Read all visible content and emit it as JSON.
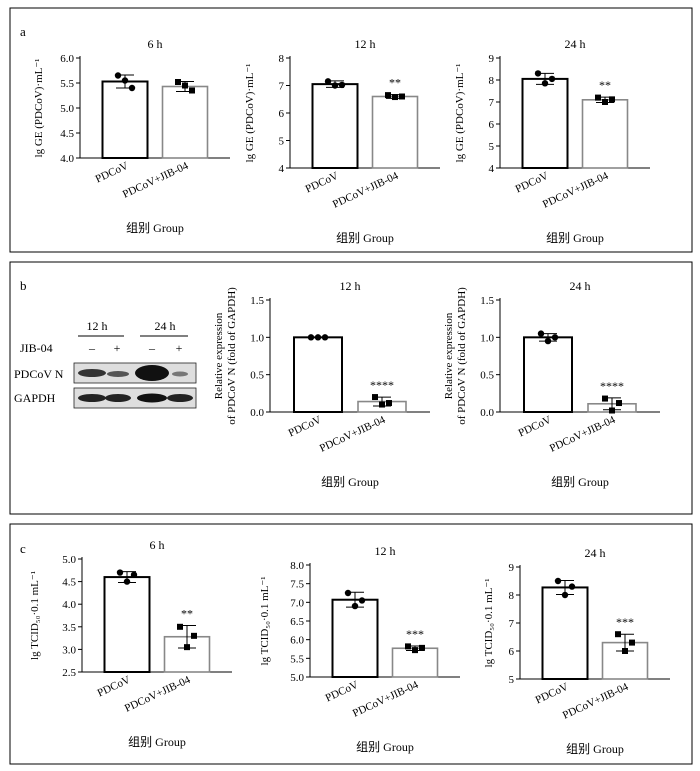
{
  "panels": [
    {
      "letter": "a"
    },
    {
      "letter": "b"
    },
    {
      "letter": "c"
    }
  ],
  "blot": {
    "time_labels": [
      "12 h",
      "24 h"
    ],
    "treatment_label": "JIB-04",
    "lane_signs": [
      "–",
      "+",
      "–",
      "+"
    ],
    "rows": [
      "PDCoV N",
      "GAPDH"
    ]
  },
  "chart_data": [
    {
      "id": "a1",
      "type": "bar",
      "title": "6 h",
      "ylabel": "lg GE (PDCoV)·mL⁻¹",
      "xlabel": "组别 Group",
      "categories": [
        "PDCoV",
        "PDCoV+JIB-04"
      ],
      "values": [
        5.53,
        5.43
      ],
      "err": [
        0.13,
        0.1
      ],
      "points": [
        [
          5.65,
          5.55,
          5.4
        ],
        [
          5.52,
          5.45,
          5.35
        ]
      ],
      "ylim": [
        4.0,
        6.0
      ],
      "yticks": [
        "4.0",
        "4.5",
        "5.0",
        "5.5",
        "6.0"
      ],
      "significance": [
        "",
        ""
      ]
    },
    {
      "id": "a2",
      "type": "bar",
      "title": "12 h",
      "ylabel": "lg GE (PDCoV)·mL⁻¹",
      "xlabel": "组别 Group",
      "categories": [
        "PDCoV",
        "PDCoV+JIB-04"
      ],
      "values": [
        7.05,
        6.6
      ],
      "err": [
        0.12,
        0.07
      ],
      "points": [
        [
          7.15,
          7.0,
          7.02
        ],
        [
          6.65,
          6.58,
          6.6
        ]
      ],
      "ylim": [
        4,
        8
      ],
      "yticks": [
        "4",
        "5",
        "6",
        "7",
        "8"
      ],
      "significance": [
        "",
        "**"
      ]
    },
    {
      "id": "a3",
      "type": "bar",
      "title": "24 h",
      "ylabel": "lg GE (PDCoV)·mL⁻¹",
      "xlabel": "组别 Group",
      "categories": [
        "PDCoV",
        "PDCoV+JIB-04"
      ],
      "values": [
        8.05,
        7.1
      ],
      "err": [
        0.25,
        0.12
      ],
      "points": [
        [
          8.3,
          7.85,
          8.05
        ],
        [
          7.2,
          7.0,
          7.12
        ]
      ],
      "ylim": [
        4,
        9
      ],
      "yticks": [
        "4",
        "5",
        "6",
        "7",
        "8",
        "9"
      ],
      "significance": [
        "",
        "**"
      ]
    },
    {
      "id": "b1",
      "type": "bar",
      "title": "12 h",
      "ylabel": "Relative expression of PDCoV N (fold of GAPDH)",
      "xlabel": "组别 Group",
      "categories": [
        "PDCoV",
        "PDCoV+JIB-04"
      ],
      "values": [
        1.0,
        0.14
      ],
      "err": [
        0.0,
        0.06
      ],
      "points": [
        [
          1.0,
          1.0,
          1.0
        ],
        [
          0.2,
          0.1,
          0.12
        ]
      ],
      "ylim": [
        0,
        1.5
      ],
      "yticks": [
        "0.0",
        "0.5",
        "1.0",
        "1.5"
      ],
      "significance": [
        "",
        "****"
      ]
    },
    {
      "id": "b2",
      "type": "bar",
      "title": "24 h",
      "ylabel": "Relative expression of PDCoV N (fold of GAPDH)",
      "xlabel": "组别 Group",
      "categories": [
        "PDCoV",
        "PDCoV+JIB-04"
      ],
      "values": [
        1.0,
        0.11
      ],
      "err": [
        0.05,
        0.08
      ],
      "points": [
        [
          1.05,
          0.95,
          1.0
        ],
        [
          0.18,
          0.02,
          0.12
        ]
      ],
      "ylim": [
        0,
        1.5
      ],
      "yticks": [
        "0.0",
        "0.5",
        "1.0",
        "1.5"
      ],
      "significance": [
        "",
        "****"
      ]
    },
    {
      "id": "c1",
      "type": "bar",
      "title": "6 h",
      "ylabel": "lg TCID₅₀·0.1 mL⁻¹",
      "xlabel": "组别 Group",
      "categories": [
        "PDCoV",
        "PDCoV+JIB-04"
      ],
      "values": [
        4.6,
        3.28
      ],
      "err": [
        0.12,
        0.25
      ],
      "points": [
        [
          4.7,
          4.5,
          4.65
        ],
        [
          3.5,
          3.05,
          3.3
        ]
      ],
      "ylim": [
        2.5,
        5.0
      ],
      "yticks": [
        "2.5",
        "3.0",
        "3.5",
        "4.0",
        "4.5",
        "5.0"
      ],
      "significance": [
        "",
        "**"
      ]
    },
    {
      "id": "c2",
      "type": "bar",
      "title": "12 h",
      "ylabel": "lg TCID₅₀·0.1 mL⁻¹",
      "xlabel": "组别 Group",
      "categories": [
        "PDCoV",
        "PDCoV+JIB-04"
      ],
      "values": [
        7.07,
        5.77
      ],
      "err": [
        0.2,
        0.06
      ],
      "points": [
        [
          7.25,
          6.9,
          7.05
        ],
        [
          5.82,
          5.72,
          5.78
        ]
      ],
      "ylim": [
        5.0,
        8.0
      ],
      "yticks": [
        "5.0",
        "5.5",
        "6.0",
        "6.5",
        "7.0",
        "7.5",
        "8.0"
      ],
      "significance": [
        "",
        "***"
      ]
    },
    {
      "id": "c3",
      "type": "bar",
      "title": "24 h",
      "ylabel": "lg TCID₅₀·0.1 mL⁻¹",
      "xlabel": "组别 Group",
      "categories": [
        "PDCoV",
        "PDCoV+JIB-04"
      ],
      "values": [
        8.27,
        6.3
      ],
      "err": [
        0.25,
        0.3
      ],
      "points": [
        [
          8.5,
          8.0,
          8.3
        ],
        [
          6.6,
          6.0,
          6.3
        ]
      ],
      "ylim": [
        5,
        9
      ],
      "yticks": [
        "5",
        "6",
        "7",
        "8",
        "9"
      ],
      "significance": [
        "",
        "***"
      ]
    }
  ]
}
